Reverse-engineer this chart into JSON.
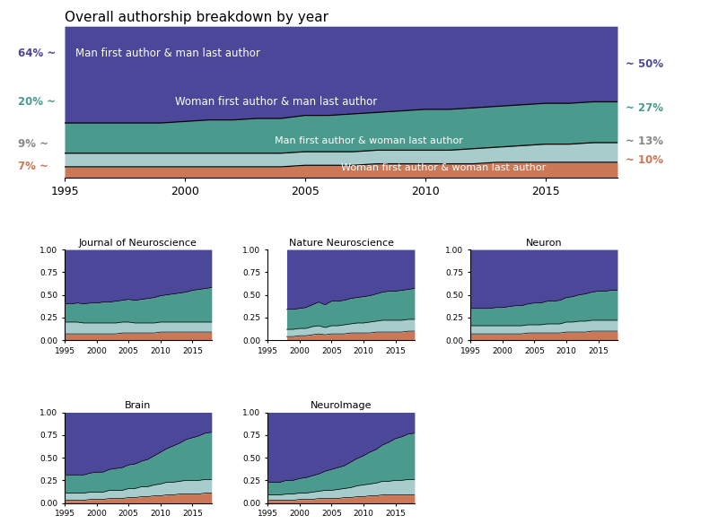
{
  "title": "Overall authorship breakdown by year",
  "colors": {
    "mm": "#4B4899",
    "wm": "#4A9B8E",
    "mw": "#A8CCCC",
    "ww": "#CC7755"
  },
  "years_main": [
    1995,
    1996,
    1997,
    1998,
    1999,
    2000,
    2001,
    2002,
    2003,
    2004,
    2005,
    2006,
    2007,
    2008,
    2009,
    2010,
    2011,
    2012,
    2013,
    2014,
    2015,
    2016,
    2017,
    2018
  ],
  "main_ww": [
    0.07,
    0.07,
    0.07,
    0.07,
    0.07,
    0.07,
    0.07,
    0.07,
    0.07,
    0.07,
    0.08,
    0.08,
    0.08,
    0.09,
    0.09,
    0.09,
    0.09,
    0.09,
    0.1,
    0.1,
    0.1,
    0.1,
    0.1,
    0.1
  ],
  "main_mw": [
    0.09,
    0.09,
    0.09,
    0.09,
    0.09,
    0.09,
    0.09,
    0.09,
    0.09,
    0.09,
    0.09,
    0.09,
    0.09,
    0.09,
    0.09,
    0.09,
    0.09,
    0.1,
    0.1,
    0.11,
    0.12,
    0.12,
    0.13,
    0.13
  ],
  "main_wm": [
    0.2,
    0.2,
    0.2,
    0.2,
    0.2,
    0.21,
    0.22,
    0.22,
    0.23,
    0.23,
    0.24,
    0.24,
    0.25,
    0.25,
    0.26,
    0.27,
    0.27,
    0.27,
    0.27,
    0.27,
    0.27,
    0.27,
    0.27,
    0.27
  ],
  "main_mm": [
    0.64,
    0.64,
    0.64,
    0.64,
    0.64,
    0.63,
    0.62,
    0.62,
    0.61,
    0.61,
    0.59,
    0.59,
    0.58,
    0.57,
    0.56,
    0.55,
    0.55,
    0.54,
    0.53,
    0.52,
    0.51,
    0.51,
    0.5,
    0.5
  ],
  "jn_ww": [
    0.07,
    0.07,
    0.07,
    0.07,
    0.07,
    0.07,
    0.07,
    0.07,
    0.07,
    0.08,
    0.08,
    0.08,
    0.08,
    0.08,
    0.08,
    0.09,
    0.09,
    0.09,
    0.09,
    0.09,
    0.09,
    0.09,
    0.09,
    0.09
  ],
  "jn_mw": [
    0.13,
    0.13,
    0.13,
    0.12,
    0.12,
    0.12,
    0.12,
    0.12,
    0.12,
    0.12,
    0.12,
    0.11,
    0.11,
    0.11,
    0.11,
    0.11,
    0.11,
    0.11,
    0.11,
    0.11,
    0.11,
    0.11,
    0.11,
    0.11
  ],
  "jn_wm": [
    0.2,
    0.2,
    0.21,
    0.21,
    0.22,
    0.22,
    0.23,
    0.23,
    0.24,
    0.24,
    0.25,
    0.25,
    0.26,
    0.27,
    0.28,
    0.29,
    0.3,
    0.31,
    0.32,
    0.33,
    0.35,
    0.36,
    0.37,
    0.38
  ],
  "jn_mm": [
    0.6,
    0.6,
    0.59,
    0.6,
    0.59,
    0.59,
    0.58,
    0.58,
    0.57,
    0.56,
    0.55,
    0.56,
    0.55,
    0.54,
    0.53,
    0.51,
    0.5,
    0.49,
    0.48,
    0.47,
    0.45,
    0.44,
    0.43,
    0.42
  ],
  "nn_ww": [
    0.0,
    0.0,
    0.0,
    0.04,
    0.04,
    0.05,
    0.05,
    0.06,
    0.07,
    0.06,
    0.07,
    0.07,
    0.07,
    0.08,
    0.08,
    0.08,
    0.08,
    0.09,
    0.09,
    0.09,
    0.09,
    0.09,
    0.1,
    0.1
  ],
  "nn_mw": [
    0.0,
    0.0,
    0.0,
    0.08,
    0.08,
    0.08,
    0.08,
    0.09,
    0.09,
    0.08,
    0.09,
    0.09,
    0.1,
    0.1,
    0.11,
    0.11,
    0.12,
    0.12,
    0.13,
    0.13,
    0.13,
    0.13,
    0.13,
    0.13
  ],
  "nn_wm": [
    0.0,
    0.0,
    0.0,
    0.22,
    0.22,
    0.22,
    0.23,
    0.24,
    0.26,
    0.25,
    0.27,
    0.27,
    0.27,
    0.28,
    0.28,
    0.29,
    0.29,
    0.3,
    0.31,
    0.32,
    0.32,
    0.33,
    0.33,
    0.34
  ],
  "nn_mm": [
    0.0,
    0.0,
    0.0,
    0.66,
    0.66,
    0.65,
    0.64,
    0.61,
    0.58,
    0.61,
    0.57,
    0.57,
    0.56,
    0.54,
    0.53,
    0.52,
    0.51,
    0.49,
    0.47,
    0.46,
    0.46,
    0.45,
    0.44,
    0.43
  ],
  "neu_ww": [
    0.07,
    0.07,
    0.07,
    0.07,
    0.07,
    0.07,
    0.07,
    0.07,
    0.07,
    0.08,
    0.08,
    0.08,
    0.08,
    0.08,
    0.08,
    0.09,
    0.09,
    0.09,
    0.09,
    0.1,
    0.1,
    0.1,
    0.1,
    0.1
  ],
  "neu_mw": [
    0.09,
    0.09,
    0.09,
    0.09,
    0.09,
    0.09,
    0.09,
    0.09,
    0.09,
    0.09,
    0.09,
    0.09,
    0.1,
    0.1,
    0.1,
    0.11,
    0.11,
    0.12,
    0.12,
    0.12,
    0.12,
    0.12,
    0.12,
    0.12
  ],
  "neu_wm": [
    0.19,
    0.19,
    0.19,
    0.19,
    0.2,
    0.2,
    0.21,
    0.22,
    0.22,
    0.23,
    0.24,
    0.24,
    0.25,
    0.25,
    0.26,
    0.27,
    0.28,
    0.29,
    0.3,
    0.31,
    0.32,
    0.32,
    0.33,
    0.33
  ],
  "neu_mm": [
    0.65,
    0.65,
    0.65,
    0.65,
    0.64,
    0.64,
    0.63,
    0.62,
    0.62,
    0.6,
    0.59,
    0.59,
    0.57,
    0.57,
    0.56,
    0.53,
    0.52,
    0.5,
    0.49,
    0.47,
    0.46,
    0.46,
    0.45,
    0.45
  ],
  "brain_ww": [
    0.03,
    0.03,
    0.03,
    0.03,
    0.04,
    0.04,
    0.04,
    0.05,
    0.05,
    0.05,
    0.06,
    0.06,
    0.07,
    0.07,
    0.08,
    0.08,
    0.09,
    0.09,
    0.1,
    0.1,
    0.1,
    0.1,
    0.11,
    0.11
  ],
  "brain_mw": [
    0.08,
    0.08,
    0.08,
    0.08,
    0.08,
    0.08,
    0.08,
    0.09,
    0.09,
    0.09,
    0.1,
    0.1,
    0.11,
    0.11,
    0.12,
    0.13,
    0.14,
    0.14,
    0.14,
    0.15,
    0.15,
    0.15,
    0.15,
    0.15
  ],
  "brain_wm": [
    0.2,
    0.2,
    0.2,
    0.2,
    0.21,
    0.22,
    0.22,
    0.23,
    0.24,
    0.25,
    0.26,
    0.27,
    0.28,
    0.3,
    0.32,
    0.35,
    0.37,
    0.4,
    0.42,
    0.45,
    0.47,
    0.49,
    0.51,
    0.52
  ],
  "brain_mm": [
    0.69,
    0.69,
    0.69,
    0.69,
    0.67,
    0.66,
    0.66,
    0.63,
    0.62,
    0.61,
    0.58,
    0.57,
    0.54,
    0.52,
    0.48,
    0.44,
    0.4,
    0.37,
    0.34,
    0.3,
    0.28,
    0.26,
    0.23,
    0.22
  ],
  "neuroimage_ww": [
    0.03,
    0.03,
    0.03,
    0.03,
    0.03,
    0.04,
    0.04,
    0.04,
    0.05,
    0.05,
    0.05,
    0.05,
    0.06,
    0.06,
    0.07,
    0.07,
    0.08,
    0.08,
    0.09,
    0.09,
    0.09,
    0.09,
    0.09,
    0.09
  ],
  "neuroimage_mw": [
    0.06,
    0.06,
    0.06,
    0.07,
    0.07,
    0.07,
    0.07,
    0.08,
    0.08,
    0.09,
    0.09,
    0.1,
    0.1,
    0.11,
    0.12,
    0.13,
    0.13,
    0.14,
    0.15,
    0.15,
    0.16,
    0.16,
    0.17,
    0.17
  ],
  "neuroimage_wm": [
    0.14,
    0.14,
    0.14,
    0.15,
    0.15,
    0.16,
    0.17,
    0.18,
    0.19,
    0.21,
    0.23,
    0.24,
    0.25,
    0.28,
    0.3,
    0.32,
    0.35,
    0.37,
    0.4,
    0.43,
    0.46,
    0.48,
    0.5,
    0.51
  ],
  "neuroimage_mm": [
    0.77,
    0.77,
    0.77,
    0.75,
    0.75,
    0.73,
    0.72,
    0.7,
    0.68,
    0.65,
    0.63,
    0.61,
    0.59,
    0.55,
    0.51,
    0.48,
    0.44,
    0.41,
    0.36,
    0.33,
    0.29,
    0.27,
    0.24,
    0.23
  ]
}
